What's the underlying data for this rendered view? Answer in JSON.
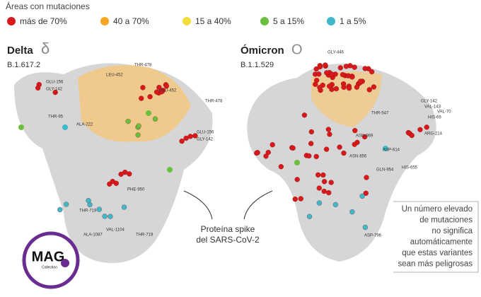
{
  "legend": {
    "title": "Áreas con mutaciones",
    "items": [
      {
        "label": "más de 70%",
        "color": "#d7191c"
      },
      {
        "label": "40 a 70%",
        "color": "#f5a623"
      },
      {
        "label": "15 a 40%",
        "color": "#f2de3a"
      },
      {
        "label": "5 a 15%",
        "color": "#6abf3f"
      },
      {
        "label": "1 a 5%",
        "color": "#3fb8c9"
      }
    ]
  },
  "variants": [
    {
      "name": "Delta",
      "symbol": "δ",
      "lineage": "B.1.617.2",
      "labels": [
        "GLU-156",
        "GLY-142",
        "THR-95",
        "ALA-222",
        "THR-478",
        "LEU-452",
        "GLU-452",
        "THR-478",
        "GLU-156",
        "GLY-142",
        "PHE-950",
        "THR-719",
        "VAL-1104",
        "ALA-1087",
        "THR-719"
      ]
    },
    {
      "name": "Ómicron",
      "symbol": "O",
      "lineage": "B.1.1.529",
      "labels": [
        "GLY-446",
        "THR-547",
        "GLY-142",
        "VAL-143",
        "VAL-70",
        "HIS-69",
        "ARG-214",
        "ASN-969",
        "ASN-856",
        "ASP-614",
        "GLN-954",
        "HIS-655",
        "ASP-796"
      ]
    }
  ],
  "caption": [
    "Proteína spike",
    "del SARS-CoV-2"
  ],
  "note": [
    "Un número elevado",
    "de mutaciones",
    "no significa",
    "automáticamente",
    "que estas variantes",
    "sean más peligrosas"
  ],
  "logo": {
    "text": "MAG",
    "sub": "Collection"
  }
}
